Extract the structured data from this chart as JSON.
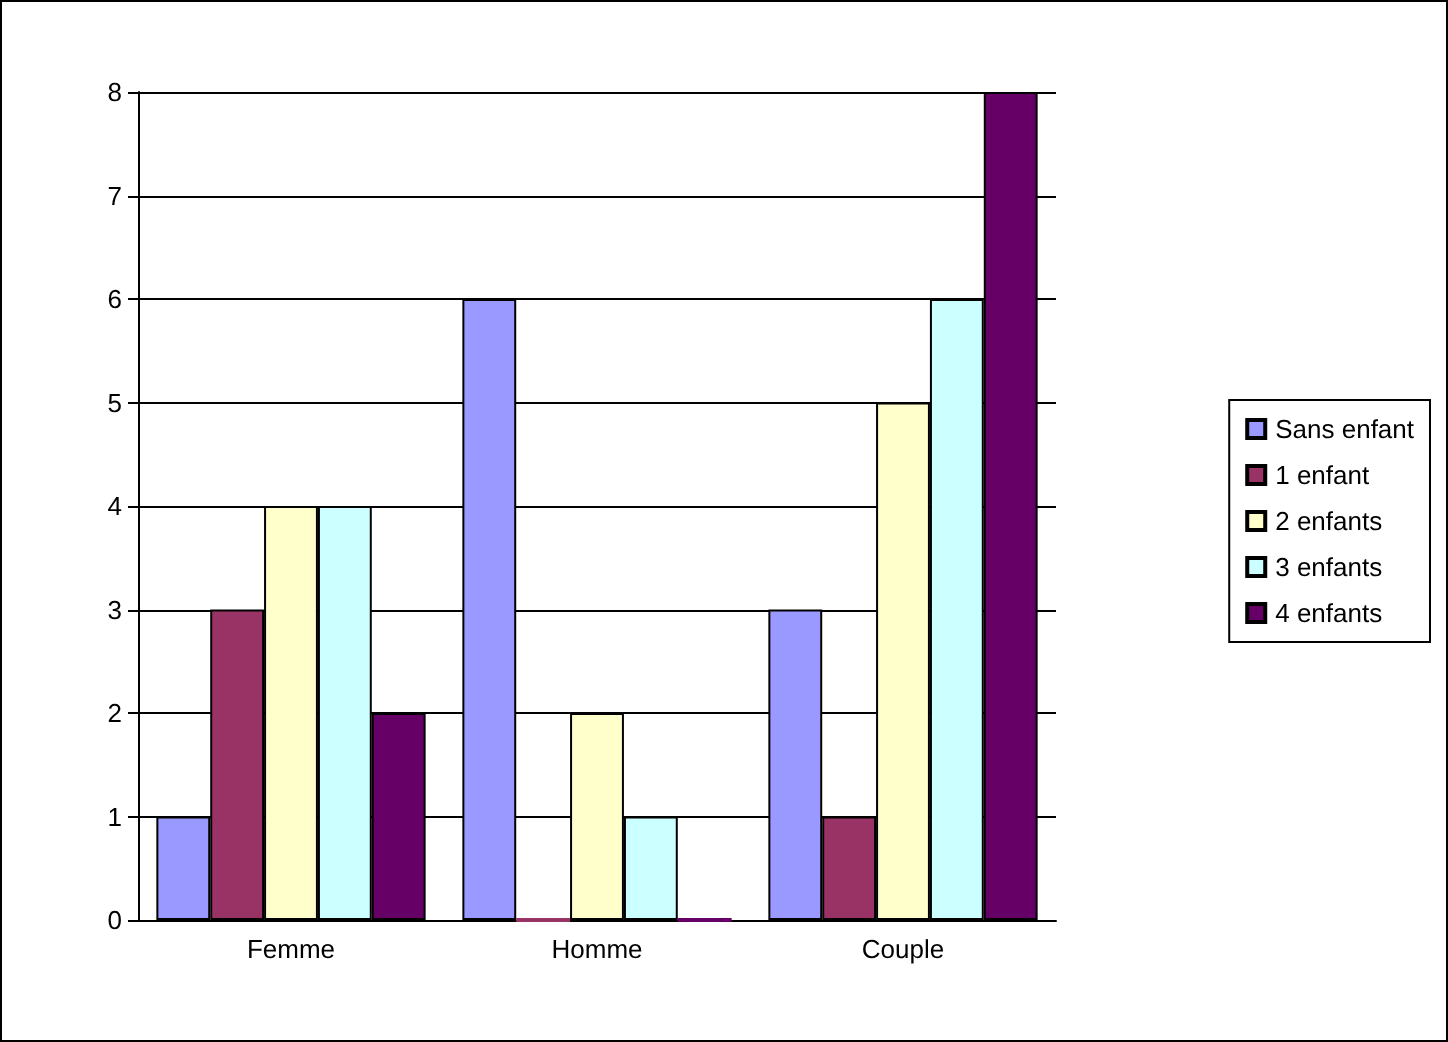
{
  "chart_data": {
    "type": "bar",
    "categories": [
      "Femme",
      "Homme",
      "Couple"
    ],
    "series": [
      {
        "name": "Sans enfant",
        "color": "#9999ff",
        "values": [
          1,
          6,
          3
        ]
      },
      {
        "name": "1 enfant",
        "color": "#993366",
        "values": [
          3,
          0,
          1
        ]
      },
      {
        "name": "2 enfants",
        "color": "#ffffcc",
        "values": [
          4,
          2,
          5
        ]
      },
      {
        "name": "3 enfants",
        "color": "#ccffff",
        "values": [
          4,
          1,
          6
        ]
      },
      {
        "name": "4 enfants",
        "color": "#660066",
        "values": [
          2,
          0,
          8
        ]
      }
    ],
    "ylim": [
      0,
      8
    ],
    "yticks": [
      0,
      1,
      2,
      3,
      4,
      5,
      6,
      7,
      8
    ],
    "grid": "y",
    "legend": "right"
  }
}
